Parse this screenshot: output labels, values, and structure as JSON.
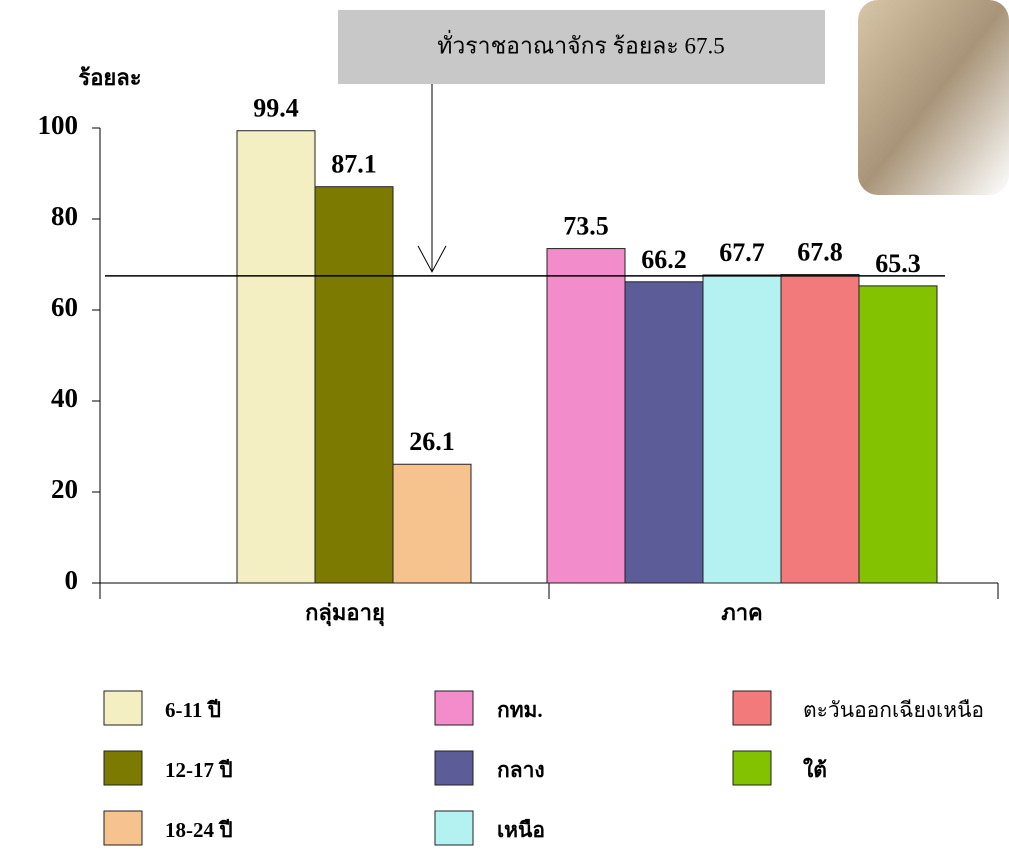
{
  "chart_data": {
    "type": "bar",
    "y_label": "ร้อยละ",
    "categories": [
      "กลุ่มอายุ",
      "ภาค"
    ],
    "series": [
      {
        "name": "6-11 ปี",
        "color": "#f4efc2",
        "values": [
          99.4,
          null
        ]
      },
      {
        "name": "12-17 ปี",
        "color": "#7c7a00",
        "values": [
          87.1,
          null
        ]
      },
      {
        "name": "18-24 ปี",
        "color": "#f6c28e",
        "values": [
          26.1,
          null
        ]
      },
      {
        "name": "กทม.",
        "color": "#f28ccb",
        "values": [
          null,
          73.5
        ]
      },
      {
        "name": "กลาง",
        "color": "#5c5c98",
        "values": [
          null,
          66.2
        ]
      },
      {
        "name": "เหนือ",
        "color": "#b4f2f2",
        "values": [
          null,
          67.7
        ]
      },
      {
        "name": "ตะวันออกเฉียงเหนือ",
        "color": "#f27a7a",
        "values": [
          null,
          67.8
        ]
      },
      {
        "name": "ใต้",
        "color": "#82c200",
        "values": [
          null,
          65.3
        ]
      }
    ],
    "ylim": [
      0,
      100
    ],
    "yticks": [
      0,
      20,
      40,
      60,
      80,
      100
    ],
    "reference_line": {
      "value": 67.5,
      "label": "ทั่วราชอาณาจักร ร้อยละ 67.5"
    }
  }
}
